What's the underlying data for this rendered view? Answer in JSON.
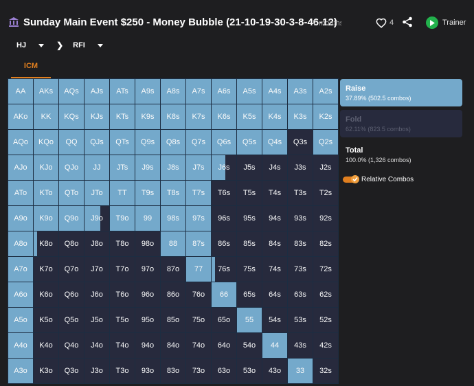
{
  "header": {
    "title": "Sunday Main Event $250 - Money Bubble (21-10-19-30-3-8-46-12)",
    "time_ago": "7 months",
    "likes": "4",
    "trainer_label": "Trainer"
  },
  "positions": {
    "hero": "HJ",
    "action": "RFI"
  },
  "tabs": [
    {
      "label": "ICM",
      "active": true
    }
  ],
  "colors": {
    "raise": "#74a9cb",
    "fold": "#272a3d",
    "accent": "#e07f1f",
    "trainer": "#22b14c"
  },
  "actions": {
    "raise": {
      "label": "Raise",
      "detail": "37.89% (502.5 combos)"
    },
    "fold": {
      "label": "Fold",
      "detail": "62.11% (823.5 combos)"
    },
    "total": {
      "label": "Total",
      "detail": "100.0% (1,326 combos)"
    }
  },
  "relative_combos": {
    "label": "Relative Combos",
    "enabled": true
  },
  "grid": {
    "rows": [
      [
        [
          "AA",
          1
        ],
        [
          "AKs",
          1
        ],
        [
          "AQs",
          1
        ],
        [
          "AJs",
          1
        ],
        [
          "ATs",
          1
        ],
        [
          "A9s",
          1
        ],
        [
          "A8s",
          1
        ],
        [
          "A7s",
          1
        ],
        [
          "A6s",
          1
        ],
        [
          "A5s",
          1
        ],
        [
          "A4s",
          1
        ],
        [
          "A3s",
          1
        ],
        [
          "A2s",
          1
        ]
      ],
      [
        [
          "AKo",
          1
        ],
        [
          "KK",
          1
        ],
        [
          "KQs",
          1
        ],
        [
          "KJs",
          1
        ],
        [
          "KTs",
          1
        ],
        [
          "K9s",
          1
        ],
        [
          "K8s",
          1
        ],
        [
          "K7s",
          1
        ],
        [
          "K6s",
          1
        ],
        [
          "K5s",
          1
        ],
        [
          "K4s",
          1
        ],
        [
          "K3s",
          1
        ],
        [
          "K2s",
          1
        ]
      ],
      [
        [
          "AQo",
          1
        ],
        [
          "KQo",
          1
        ],
        [
          "QQ",
          1
        ],
        [
          "QJs",
          1
        ],
        [
          "QTs",
          1
        ],
        [
          "Q9s",
          1
        ],
        [
          "Q8s",
          1
        ],
        [
          "Q7s",
          1
        ],
        [
          "Q6s",
          1
        ],
        [
          "Q5s",
          1
        ],
        [
          "Q4s",
          1
        ],
        [
          "Q3s",
          0
        ],
        [
          "Q2s",
          1
        ]
      ],
      [
        [
          "AJo",
          1
        ],
        [
          "KJo",
          1
        ],
        [
          "QJo",
          1
        ],
        [
          "JJ",
          1
        ],
        [
          "JTs",
          1
        ],
        [
          "J9s",
          1
        ],
        [
          "J8s",
          1
        ],
        [
          "J7s",
          1
        ],
        [
          "J6s",
          0.55
        ],
        [
          "J5s",
          0
        ],
        [
          "J4s",
          0
        ],
        [
          "J3s",
          0
        ],
        [
          "J2s",
          0
        ]
      ],
      [
        [
          "ATo",
          1
        ],
        [
          "KTo",
          1
        ],
        [
          "QTo",
          1
        ],
        [
          "JTo",
          1
        ],
        [
          "TT",
          1
        ],
        [
          "T9s",
          1
        ],
        [
          "T8s",
          1
        ],
        [
          "T7s",
          1
        ],
        [
          "T6s",
          0
        ],
        [
          "T5s",
          0
        ],
        [
          "T4s",
          0
        ],
        [
          "T3s",
          0
        ],
        [
          "T2s",
          0
        ]
      ],
      [
        [
          "A9o",
          1
        ],
        [
          "K9o",
          1
        ],
        [
          "Q9o",
          1
        ],
        [
          "J9o",
          0.65
        ],
        [
          "T9o",
          1
        ],
        [
          "99",
          1
        ],
        [
          "98s",
          1
        ],
        [
          "97s",
          1
        ],
        [
          "96s",
          0
        ],
        [
          "95s",
          0
        ],
        [
          "94s",
          0
        ],
        [
          "93s",
          0
        ],
        [
          "92s",
          0
        ]
      ],
      [
        [
          "A8o",
          1
        ],
        [
          "K8o",
          0.15
        ],
        [
          "Q8o",
          0
        ],
        [
          "J8o",
          0
        ],
        [
          "T8o",
          0
        ],
        [
          "98o",
          0
        ],
        [
          "88",
          1
        ],
        [
          "87s",
          1
        ],
        [
          "86s",
          0
        ],
        [
          "85s",
          0
        ],
        [
          "84s",
          0
        ],
        [
          "83s",
          0
        ],
        [
          "82s",
          0
        ]
      ],
      [
        [
          "A7o",
          1
        ],
        [
          "K7o",
          0
        ],
        [
          "Q7o",
          0
        ],
        [
          "J7o",
          0
        ],
        [
          "T7o",
          0
        ],
        [
          "97o",
          0
        ],
        [
          "87o",
          0
        ],
        [
          "77",
          1
        ],
        [
          "76s",
          0.15
        ],
        [
          "75s",
          0
        ],
        [
          "74s",
          0
        ],
        [
          "73s",
          0
        ],
        [
          "72s",
          0
        ]
      ],
      [
        [
          "A6o",
          1
        ],
        [
          "K6o",
          0
        ],
        [
          "Q6o",
          0
        ],
        [
          "J6o",
          0
        ],
        [
          "T6o",
          0
        ],
        [
          "96o",
          0
        ],
        [
          "86o",
          0
        ],
        [
          "76o",
          0
        ],
        [
          "66",
          1
        ],
        [
          "65s",
          0
        ],
        [
          "64s",
          0
        ],
        [
          "63s",
          0
        ],
        [
          "62s",
          0
        ]
      ],
      [
        [
          "A5o",
          1
        ],
        [
          "K5o",
          0
        ],
        [
          "Q5o",
          0
        ],
        [
          "J5o",
          0
        ],
        [
          "T5o",
          0
        ],
        [
          "95o",
          0
        ],
        [
          "85o",
          0
        ],
        [
          "75o",
          0
        ],
        [
          "65o",
          0
        ],
        [
          "55",
          1
        ],
        [
          "54s",
          0
        ],
        [
          "53s",
          0
        ],
        [
          "52s",
          0
        ]
      ],
      [
        [
          "A4o",
          1
        ],
        [
          "K4o",
          0
        ],
        [
          "Q4o",
          0
        ],
        [
          "J4o",
          0
        ],
        [
          "T4o",
          0
        ],
        [
          "94o",
          0
        ],
        [
          "84o",
          0
        ],
        [
          "74o",
          0
        ],
        [
          "64o",
          0
        ],
        [
          "54o",
          0
        ],
        [
          "44",
          1
        ],
        [
          "43s",
          0
        ],
        [
          "42s",
          0
        ]
      ],
      [
        [
          "A3o",
          1
        ],
        [
          "K3o",
          0
        ],
        [
          "Q3o",
          0
        ],
        [
          "J3o",
          0
        ],
        [
          "T3o",
          0
        ],
        [
          "93o",
          0
        ],
        [
          "83o",
          0
        ],
        [
          "73o",
          0
        ],
        [
          "63o",
          0
        ],
        [
          "53o",
          0
        ],
        [
          "43o",
          0
        ],
        [
          "33",
          1
        ],
        [
          "32s",
          0
        ]
      ]
    ]
  }
}
